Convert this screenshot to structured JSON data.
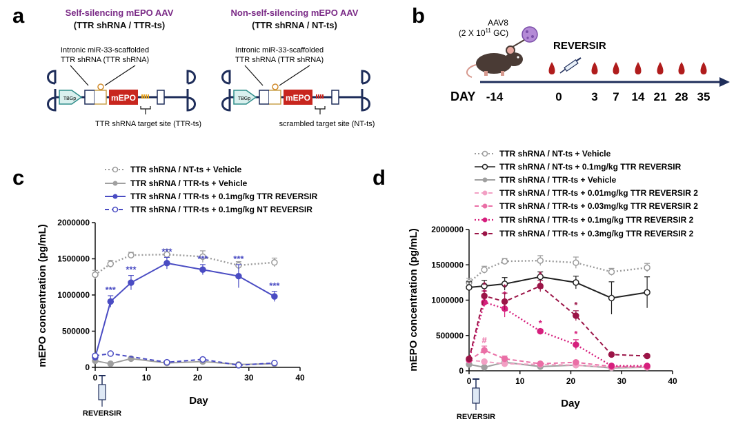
{
  "panels": {
    "a": "a",
    "b": "b",
    "c": "c",
    "d": "d"
  },
  "panel_a": {
    "left": {
      "title": "Self-silencing mEPO AAV",
      "subtitle": "(TTR shRNA / TTR-ts)",
      "note_line1": "Intronic miR-33-scaffolded",
      "note_line2": "TTR shRNA (TTR shRNA)",
      "promoter": "TBGp",
      "gene": "mEPO",
      "target_label": "TTR shRNA target site (TTR-ts)"
    },
    "right": {
      "title": "Non-self-silencing mEPO AAV",
      "subtitle": "(TTR shRNA / NT-ts)",
      "note_line1": "Intronic miR-33-scaffolded",
      "note_line2": "TTR shRNA (TTR shRNA)",
      "promoter": "TBGp",
      "gene": "mEPO",
      "target_label": "scrambled target site (NT-ts)"
    }
  },
  "panel_b": {
    "vector": "AAV8",
    "dose_prefix": "(2 X 10",
    "dose_exp": "11",
    "dose_suffix": " GC)",
    "treatment": "REVERSIR",
    "day_label": "DAY",
    "days": [
      "-14",
      "0",
      "3",
      "7",
      "14",
      "21",
      "28",
      "35"
    ]
  },
  "colors": {
    "purple_title": "#7a2a86",
    "navy": "#1e2d5a",
    "blood": "#b01c1c",
    "blue_series": "#4a4cc3",
    "grey_open": "#9a9a9a",
    "grey_fill": "#a0a0a0",
    "black": "#222222",
    "pink1": "#f2a0c4",
    "pink2": "#ea6fa6",
    "magenta": "#d61f7d",
    "maroon": "#9b1447"
  },
  "chart_data": [
    {
      "panel": "c",
      "type": "line",
      "title": "",
      "xlabel": "Day",
      "ylabel": "mEPO concentration (pg/mL)",
      "xlim": [
        0,
        40
      ],
      "ylim": [
        0,
        2000000
      ],
      "xticks": [
        0,
        10,
        20,
        30,
        40
      ],
      "yticks": [
        0,
        500000,
        1000000,
        1500000,
        2000000
      ],
      "legend_position": "top",
      "annotation": "REVERSIR",
      "series": [
        {
          "name": "TTR shRNA / NT-ts + Vehicle",
          "style": "dotted",
          "marker": "open",
          "color": "#9a9a9a",
          "x": [
            0,
            3,
            7,
            14,
            21,
            28,
            35
          ],
          "values": [
            1280000,
            1430000,
            1550000,
            1560000,
            1530000,
            1410000,
            1450000
          ],
          "err": [
            60000,
            50000,
            40000,
            70000,
            80000,
            50000,
            60000
          ]
        },
        {
          "name": "TTR shRNA / TTR-ts +  Vehicle",
          "style": "solid",
          "marker": "filled",
          "color": "#a0a0a0",
          "x": [
            0,
            3,
            7,
            14,
            21,
            28,
            35
          ],
          "values": [
            90000,
            50000,
            120000,
            60000,
            80000,
            40000,
            50000
          ],
          "err": [
            10000,
            10000,
            15000,
            10000,
            10000,
            8000,
            8000
          ]
        },
        {
          "name": "TTR shRNA / TTR-ts + 0.1mg/kg TTR REVERSIR",
          "style": "solid",
          "marker": "filled",
          "color": "#4a4cc3",
          "x": [
            0,
            3,
            7,
            14,
            21,
            28,
            35
          ],
          "values": [
            140000,
            910000,
            1170000,
            1440000,
            1350000,
            1260000,
            980000
          ],
          "err": [
            15000,
            80000,
            100000,
            80000,
            70000,
            160000,
            70000
          ],
          "labels": [
            "",
            "***",
            "***",
            "***",
            "***",
            "***",
            "***"
          ]
        },
        {
          "name": "TTR shRNA / TTR-ts + 0.1mg/kg NT REVERSIR",
          "style": "dashed",
          "marker": "open",
          "color": "#4a4cc3",
          "x": [
            0,
            3,
            14,
            21,
            28,
            35
          ],
          "values": [
            160000,
            190000,
            70000,
            110000,
            30000,
            60000
          ],
          "err": [
            10000,
            10000,
            10000,
            10000,
            8000,
            8000
          ]
        }
      ]
    },
    {
      "panel": "d",
      "type": "line",
      "title": "",
      "xlabel": "Day",
      "ylabel": "mEPO concentration (pg/mL)",
      "xlim": [
        0,
        40
      ],
      "ylim": [
        0,
        2000000
      ],
      "xticks": [
        0,
        10,
        20,
        30,
        40
      ],
      "yticks": [
        0,
        500000,
        1000000,
        1500000,
        2000000
      ],
      "legend_position": "top",
      "annotation": "REVERSIR",
      "series": [
        {
          "name": "TTR shRNA / NT-ts + Vehicle",
          "style": "dotted",
          "marker": "open",
          "color": "#9a9a9a",
          "x": [
            0,
            3,
            7,
            14,
            21,
            28,
            35
          ],
          "values": [
            1250000,
            1430000,
            1550000,
            1560000,
            1530000,
            1400000,
            1460000
          ],
          "err": [
            60000,
            50000,
            40000,
            70000,
            80000,
            50000,
            60000
          ]
        },
        {
          "name": "TTR shRNA / NT-ts +  0.1mg/kg TTR REVERSIR",
          "style": "solid",
          "marker": "open",
          "color": "#222222",
          "x": [
            0,
            3,
            7,
            14,
            21,
            28,
            35
          ],
          "values": [
            1180000,
            1200000,
            1230000,
            1330000,
            1250000,
            1030000,
            1110000
          ],
          "err": [
            80000,
            80000,
            90000,
            70000,
            90000,
            230000,
            220000
          ]
        },
        {
          "name": "TTR shRNA / TTR-ts +  Vehicle",
          "style": "solid",
          "marker": "filled",
          "color": "#a0a0a0",
          "x": [
            0,
            3,
            7,
            14,
            21,
            28,
            35
          ],
          "values": [
            90000,
            50000,
            120000,
            60000,
            80000,
            40000,
            50000
          ],
          "err": [
            10000,
            10000,
            15000,
            10000,
            10000,
            8000,
            8000
          ]
        },
        {
          "name": "TTR shRNA / TTR-ts  + 0.01mg/kg TTR  REVERSIR 2",
          "style": "dashed",
          "marker": "filled",
          "color": "#f2a0c4",
          "x": [
            0,
            3,
            7,
            14,
            21,
            28,
            35
          ],
          "values": [
            150000,
            130000,
            100000,
            90000,
            80000,
            50000,
            50000
          ],
          "err": [
            10000,
            10000,
            10000,
            10000,
            10000,
            8000,
            8000
          ]
        },
        {
          "name": "TTR shRNA / TTR-ts + 0.03mg/kg TTR REVERSIR 2",
          "style": "dashed",
          "marker": "filled",
          "color": "#ea6fa6",
          "x": [
            0,
            3,
            7,
            14,
            21,
            28,
            35
          ],
          "values": [
            150000,
            290000,
            170000,
            100000,
            120000,
            60000,
            60000
          ],
          "err": [
            10000,
            60000,
            40000,
            15000,
            20000,
            10000,
            10000
          ],
          "labels": [
            "",
            "#",
            "",
            "",
            "",
            "",
            ""
          ]
        },
        {
          "name": "TTR shRNA / TTR-ts + 0.1mg/kg TTR REVERSIR 2",
          "style": "dotted",
          "marker": "filled",
          "color": "#d61f7d",
          "x": [
            0,
            3,
            7,
            14,
            21,
            28,
            35
          ],
          "values": [
            160000,
            970000,
            880000,
            560000,
            370000,
            70000,
            70000
          ],
          "err": [
            15000,
            60000,
            120000,
            30000,
            70000,
            10000,
            10000
          ],
          "labels": [
            "",
            "*",
            "*",
            "*",
            "*",
            "",
            ""
          ]
        },
        {
          "name": "TTR shRNA / TTR-ts + 0.3mg/kg TTR  REVERSIR 2",
          "style": "dashed",
          "marker": "filled",
          "color": "#9b1447",
          "x": [
            0,
            3,
            7,
            14,
            21,
            28,
            35
          ],
          "values": [
            170000,
            1060000,
            980000,
            1200000,
            780000,
            230000,
            210000
          ],
          "err": [
            15000,
            70000,
            120000,
            80000,
            70000,
            15000,
            15000
          ],
          "labels": [
            "",
            "*",
            "*",
            "*",
            "*",
            "",
            ""
          ]
        }
      ]
    }
  ]
}
